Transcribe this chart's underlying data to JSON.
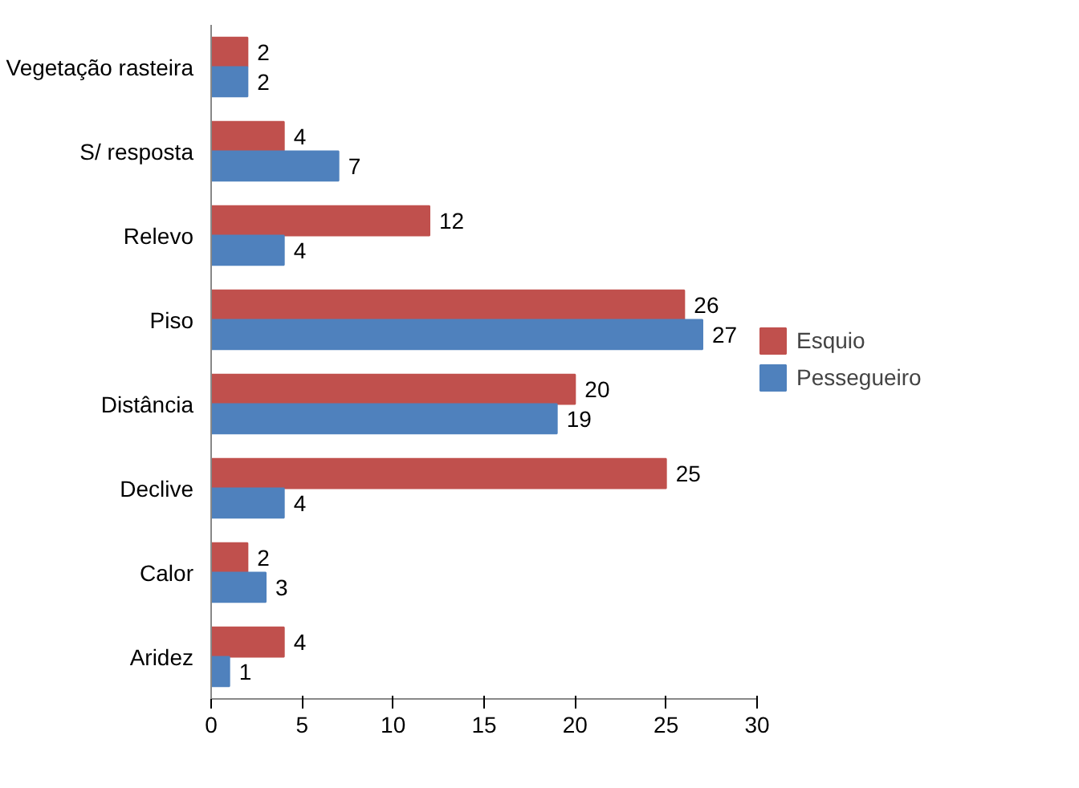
{
  "chart_data": {
    "type": "bar",
    "orientation": "horizontal",
    "categories": [
      "Vegetação rasteira",
      "S/ resposta",
      "Relevo",
      "Piso",
      "Distância",
      "Declive",
      "Calor",
      "Aridez"
    ],
    "series": [
      {
        "name": "Esquio",
        "color": "#c0504d",
        "values": [
          2,
          4,
          12,
          26,
          20,
          25,
          2,
          4
        ]
      },
      {
        "name": "Pessegueiro",
        "color": "#4f81bd",
        "values": [
          2,
          7,
          4,
          27,
          19,
          4,
          3,
          1
        ]
      }
    ],
    "xlim": [
      0,
      30
    ],
    "xticks": [
      0,
      5,
      10,
      15,
      20,
      25,
      30
    ],
    "grid": false,
    "legend": "right",
    "data_labels": true
  }
}
